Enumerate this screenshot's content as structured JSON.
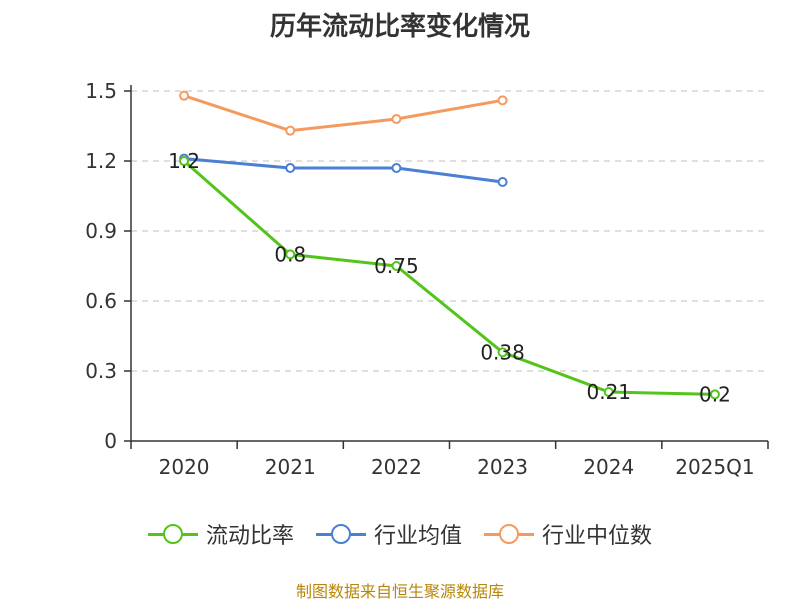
{
  "chart_data": {
    "type": "line",
    "title": "历年流动比率变化情况",
    "categories": [
      "2020",
      "2021",
      "2022",
      "2023",
      "2024",
      "2025Q1"
    ],
    "ylim": [
      0,
      1.5
    ],
    "yticks": [
      "0",
      "0.3",
      "0.6",
      "0.9",
      "1.2",
      "1.5"
    ],
    "series": [
      {
        "name": "流动比率",
        "color": "#52c41a",
        "values": [
          1.2,
          0.8,
          0.75,
          0.38,
          0.21,
          0.2
        ],
        "labels": [
          "1.2",
          "0.8",
          "0.75",
          "0.38",
          "0.21",
          "0.2"
        ]
      },
      {
        "name": "行业均值",
        "color": "#4a7fd4",
        "values": [
          1.21,
          1.17,
          1.17,
          1.11,
          null,
          null
        ]
      },
      {
        "name": "行业中位数",
        "color": "#f59a5f",
        "values": [
          1.48,
          1.33,
          1.38,
          1.46,
          null,
          null
        ]
      }
    ],
    "grid": true,
    "legend": "bottom"
  },
  "source": "制图数据来自恒生聚源数据库"
}
